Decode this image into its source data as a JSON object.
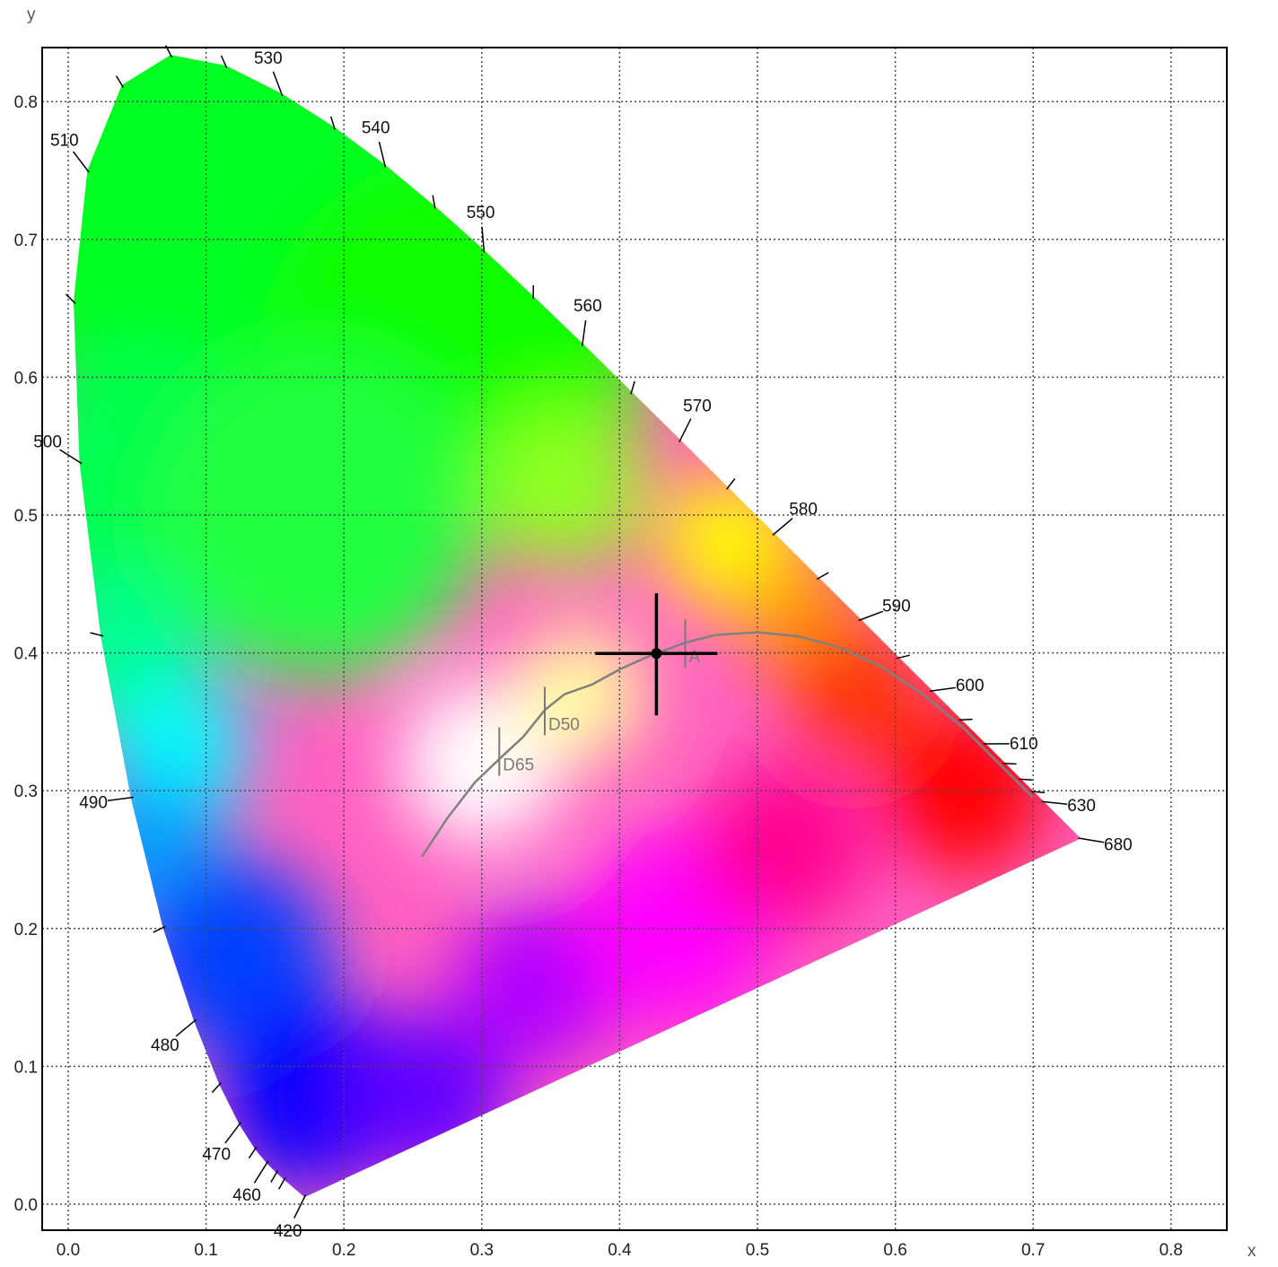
{
  "chart_data": {
    "type": "scatter",
    "title": "",
    "xlabel": "x",
    "ylabel": "y",
    "xlim": [
      -0.02,
      0.84
    ],
    "ylim": [
      -0.02,
      0.83
    ],
    "x_ticks": [
      "0.0",
      "0.1",
      "0.2",
      "0.3",
      "0.4",
      "0.5",
      "0.6",
      "0.7",
      "0.8"
    ],
    "y_ticks": [
      "0.0",
      "0.1",
      "0.2",
      "0.3",
      "0.4",
      "0.5",
      "0.6",
      "0.7",
      "0.8"
    ],
    "grid": true,
    "spectral_locus": [
      {
        "nm": 420,
        "x": 0.1714,
        "y": 0.0051,
        "label": "420"
      },
      {
        "nm": 450,
        "x": 0.1566,
        "y": 0.0177,
        "label": ""
      },
      {
        "nm": 455,
        "x": 0.151,
        "y": 0.0227,
        "label": ""
      },
      {
        "nm": 460,
        "x": 0.144,
        "y": 0.0297,
        "label": "460"
      },
      {
        "nm": 465,
        "x": 0.1355,
        "y": 0.0399,
        "label": ""
      },
      {
        "nm": 470,
        "x": 0.1241,
        "y": 0.0578,
        "label": "470"
      },
      {
        "nm": 475,
        "x": 0.1096,
        "y": 0.0868,
        "label": ""
      },
      {
        "nm": 480,
        "x": 0.0913,
        "y": 0.1327,
        "label": "480"
      },
      {
        "nm": 485,
        "x": 0.0687,
        "y": 0.2007,
        "label": ""
      },
      {
        "nm": 490,
        "x": 0.0454,
        "y": 0.295,
        "label": "490"
      },
      {
        "nm": 495,
        "x": 0.0235,
        "y": 0.4127,
        "label": ""
      },
      {
        "nm": 500,
        "x": 0.0082,
        "y": 0.5384,
        "label": "500"
      },
      {
        "nm": 505,
        "x": 0.0039,
        "y": 0.6548,
        "label": ""
      },
      {
        "nm": 510,
        "x": 0.0139,
        "y": 0.7502,
        "label": "510"
      },
      {
        "nm": 515,
        "x": 0.0389,
        "y": 0.812,
        "label": ""
      },
      {
        "nm": 520,
        "x": 0.0743,
        "y": 0.8338,
        "label": ""
      },
      {
        "nm": 525,
        "x": 0.1142,
        "y": 0.8262,
        "label": ""
      },
      {
        "nm": 530,
        "x": 0.1547,
        "y": 0.8059,
        "label": "530"
      },
      {
        "nm": 535,
        "x": 0.1929,
        "y": 0.7816,
        "label": ""
      },
      {
        "nm": 540,
        "x": 0.2296,
        "y": 0.7543,
        "label": "540"
      },
      {
        "nm": 545,
        "x": 0.2658,
        "y": 0.7243,
        "label": ""
      },
      {
        "nm": 550,
        "x": 0.3016,
        "y": 0.6923,
        "label": "550"
      },
      {
        "nm": 555,
        "x": 0.3373,
        "y": 0.6589,
        "label": ""
      },
      {
        "nm": 560,
        "x": 0.3731,
        "y": 0.6245,
        "label": "560"
      },
      {
        "nm": 565,
        "x": 0.4087,
        "y": 0.5896,
        "label": ""
      },
      {
        "nm": 570,
        "x": 0.4441,
        "y": 0.5547,
        "label": "570"
      },
      {
        "nm": 575,
        "x": 0.4788,
        "y": 0.5202,
        "label": ""
      },
      {
        "nm": 580,
        "x": 0.5125,
        "y": 0.4866,
        "label": "580"
      },
      {
        "nm": 585,
        "x": 0.5448,
        "y": 0.4544,
        "label": ""
      },
      {
        "nm": 590,
        "x": 0.5752,
        "y": 0.4242,
        "label": "590"
      },
      {
        "nm": 595,
        "x": 0.6029,
        "y": 0.3965,
        "label": ""
      },
      {
        "nm": 600,
        "x": 0.627,
        "y": 0.3725,
        "label": "600"
      },
      {
        "nm": 605,
        "x": 0.6482,
        "y": 0.3514,
        "label": ""
      },
      {
        "nm": 610,
        "x": 0.6658,
        "y": 0.334,
        "label": "610"
      },
      {
        "nm": 615,
        "x": 0.6801,
        "y": 0.3197,
        "label": ""
      },
      {
        "nm": 620,
        "x": 0.6915,
        "y": 0.3083,
        "label": ""
      },
      {
        "nm": 625,
        "x": 0.7006,
        "y": 0.2993,
        "label": ""
      },
      {
        "nm": 630,
        "x": 0.7079,
        "y": 0.292,
        "label": "630"
      },
      {
        "nm": 680,
        "x": 0.7347,
        "y": 0.2653,
        "label": "680"
      }
    ],
    "planckian_locus": [
      [
        0.2565,
        0.2521
      ],
      [
        0.275,
        0.28
      ],
      [
        0.295,
        0.306
      ],
      [
        0.3135,
        0.3237
      ],
      [
        0.33,
        0.339
      ],
      [
        0.3457,
        0.3585
      ],
      [
        0.36,
        0.37
      ],
      [
        0.38,
        0.377
      ],
      [
        0.4,
        0.388
      ],
      [
        0.42,
        0.397
      ],
      [
        0.4476,
        0.4074
      ],
      [
        0.47,
        0.413
      ],
      [
        0.5,
        0.415
      ],
      [
        0.53,
        0.412
      ],
      [
        0.56,
        0.404
      ],
      [
        0.59,
        0.39
      ],
      [
        0.62,
        0.37
      ],
      [
        0.65,
        0.345
      ],
      [
        0.68,
        0.315
      ],
      [
        0.7,
        0.295
      ]
    ],
    "illuminants": [
      {
        "name": "D65",
        "x": 0.3127,
        "y": 0.329
      },
      {
        "name": "D50",
        "x": 0.3457,
        "y": 0.3585
      },
      {
        "name": "A",
        "x": 0.4476,
        "y": 0.4074
      }
    ],
    "marker": {
      "x": 0.4267,
      "y": 0.3996
    },
    "colors": {
      "frame": "#000000",
      "grid": "#4a4a4a",
      "locus": "#808080",
      "illuminant": "#7a7a7a",
      "marker": "#000000"
    }
  }
}
